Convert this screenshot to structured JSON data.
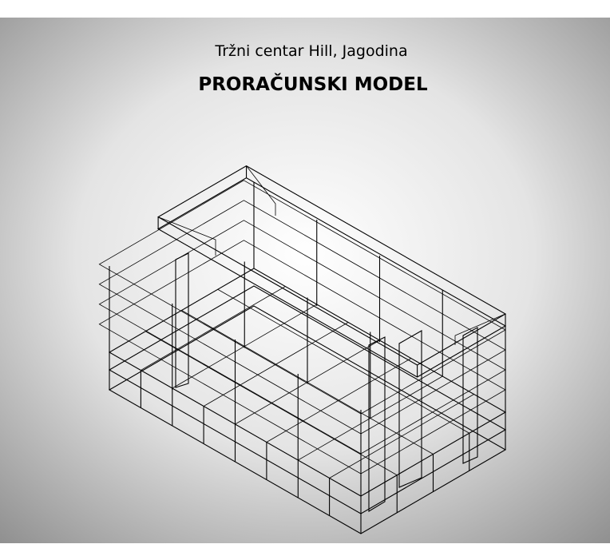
{
  "header": {
    "title": "Tržni centar Hill, Jagodina",
    "subtitle": "PRORAČUNSKI MODEL"
  }
}
